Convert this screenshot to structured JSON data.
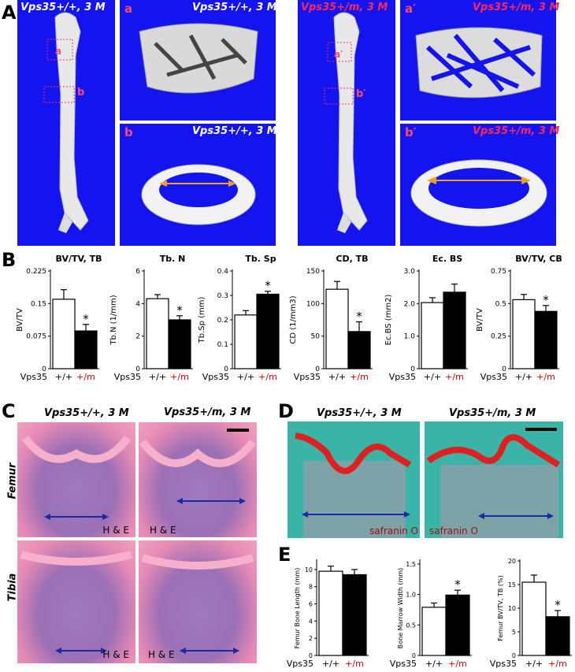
{
  "panel_letters": {
    "A": "A",
    "B": "B",
    "C": "C",
    "D": "D",
    "E": "E"
  },
  "panelA": {
    "wt_title": "Vps35+/+, 3 M",
    "mut_title": "Vps35+/m, 3 M",
    "sub_a": "a",
    "sub_b": "b",
    "sub_a_prime": "a′",
    "sub_b_prime": "b′"
  },
  "panelC": {
    "wt_title": "Vps35+/+, 3 M",
    "mut_title": "Vps35+/m, 3 M",
    "row1": "Femur",
    "row2": "Tibia",
    "stain": "H & E"
  },
  "panelD": {
    "wt_title": "Vps35+/+, 3 M",
    "mut_title": "Vps35+/m, 3 M",
    "stain": "safranin O"
  },
  "colors": {
    "wt_bar": "#ffffff",
    "mut_bar": "#000000",
    "mut_label": "#cc0000",
    "ct_background": "#1414f0",
    "arrow_orange": "#f0a020",
    "arrow_blue": "#1a2aa0"
  },
  "chart_data": [
    {
      "type": "bar",
      "title": "BV/TV, TB",
      "ylabel": "BV/TV",
      "yticks": [
        "0",
        "0.075",
        "0.15",
        "0.225"
      ],
      "ylim": [
        0,
        0.225
      ],
      "group_label": "Vps35",
      "categories": [
        "+/+",
        "+/m"
      ],
      "values": [
        0.16,
        0.087
      ],
      "errors": [
        0.022,
        0.015
      ],
      "sig": "*"
    },
    {
      "type": "bar",
      "title": "Tb. N",
      "ylabel": "Tb.N (1/mm)",
      "yticks": [
        "0",
        "2",
        "4",
        "6"
      ],
      "ylim": [
        0,
        6
      ],
      "group_label": "Vps35",
      "categories": [
        "+/+",
        "+/m"
      ],
      "values": [
        4.3,
        3.0
      ],
      "errors": [
        0.25,
        0.25
      ],
      "sig": "*"
    },
    {
      "type": "bar",
      "title": "Tb. Sp",
      "ylabel": "Tb.Sp (mm)",
      "yticks": [
        "0",
        "0.1",
        "0.2",
        "0.3",
        "0.4"
      ],
      "ylim": [
        0,
        0.4
      ],
      "group_label": "Vps35",
      "categories": [
        "+/+",
        "+/m"
      ],
      "values": [
        0.22,
        0.305
      ],
      "errors": [
        0.018,
        0.012
      ],
      "sig": "*"
    },
    {
      "type": "bar",
      "title": "CD, TB",
      "ylabel": "CD (1/mm3)",
      "yticks": [
        "0",
        "50",
        "100",
        "150"
      ],
      "ylim": [
        0,
        150
      ],
      "group_label": "Vps35",
      "categories": [
        "+/+",
        "+/m"
      ],
      "values": [
        122,
        57
      ],
      "errors": [
        12,
        15
      ],
      "sig": "*"
    },
    {
      "type": "bar",
      "title": "Ec. BS",
      "ylabel": "Ec.BS (mm2)",
      "yticks": [
        "0",
        "1.0",
        "2.0",
        "3.0"
      ],
      "ylim": [
        0,
        3.0
      ],
      "group_label": "Vps35",
      "categories": [
        "+/+",
        "+/m"
      ],
      "values": [
        2.03,
        2.35
      ],
      "errors": [
        0.15,
        0.25
      ],
      "sig": ""
    },
    {
      "type": "bar",
      "title": "BV/TV, CB",
      "ylabel": "BV/TV",
      "yticks": [
        "0",
        "0.25",
        "0.5",
        "0.75"
      ],
      "ylim": [
        0,
        0.75
      ],
      "group_label": "Vps35",
      "categories": [
        "+/+",
        "+/m"
      ],
      "values": [
        0.53,
        0.44
      ],
      "errors": [
        0.04,
        0.045
      ],
      "sig": "*"
    },
    {
      "type": "bar",
      "title": "",
      "ylabel": "Femur Bone Length (mm)",
      "yticks": [
        "0",
        "2",
        "4",
        "6",
        "8",
        "10"
      ],
      "ylim": [
        0,
        11
      ],
      "group_label": "Vps35",
      "categories": [
        "+/+",
        "+/m"
      ],
      "values": [
        9.8,
        9.4
      ],
      "errors": [
        0.6,
        0.6
      ],
      "sig": ""
    },
    {
      "type": "bar",
      "title": "",
      "ylabel": "Bone Marrow Width (mm)",
      "yticks": [
        "0",
        "0.5",
        "1.0",
        "1.5"
      ],
      "ylim": [
        0,
        1.55
      ],
      "group_label": "Vps35",
      "categories": [
        "+/+",
        "+/m"
      ],
      "values": [
        0.79,
        0.99
      ],
      "errors": [
        0.07,
        0.08
      ],
      "sig": "*"
    },
    {
      "type": "bar",
      "title": "",
      "ylabel": "Femur BV/TV, TB (%)",
      "yticks": [
        "0",
        "5",
        "10",
        "15",
        "20"
      ],
      "ylim": [
        0,
        20
      ],
      "group_label": "Vps35",
      "categories": [
        "+/+",
        "+/m"
      ],
      "values": [
        15.5,
        8.2
      ],
      "errors": [
        1.5,
        1.3
      ],
      "sig": "*"
    }
  ]
}
